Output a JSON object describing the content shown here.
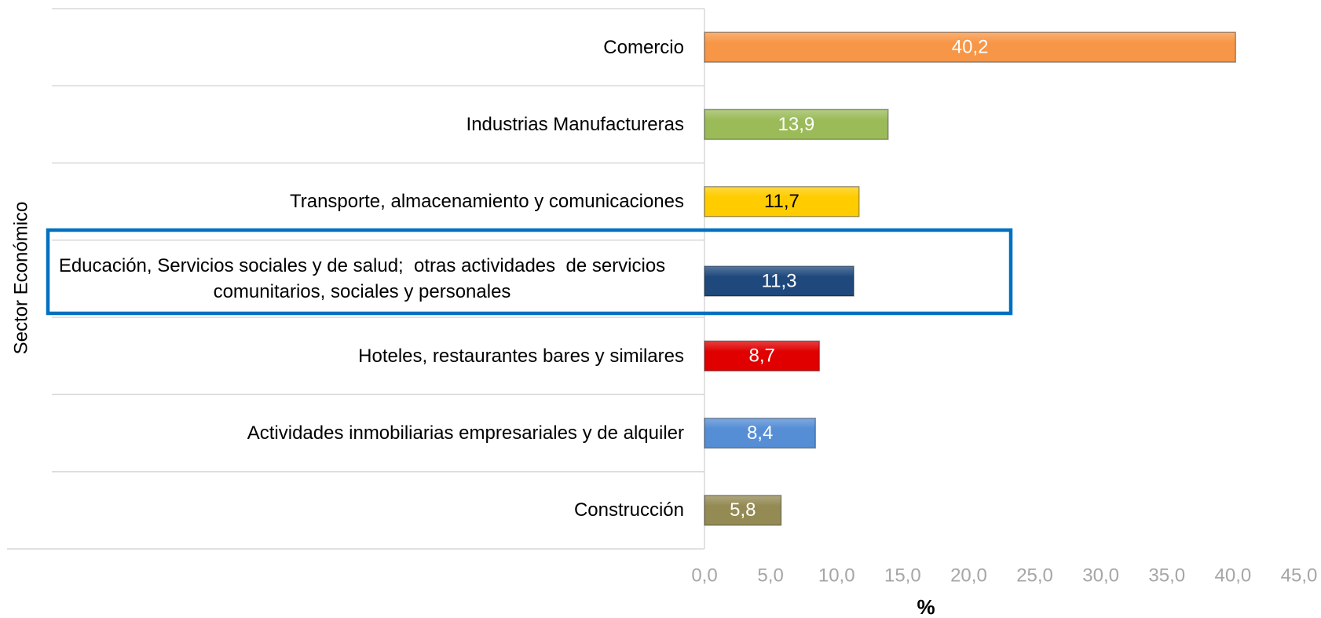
{
  "chart_data": {
    "type": "barh",
    "categories": [
      "Comercio",
      "Industrias Manufactureras",
      "Transporte, almacenamiento y comunicaciones",
      "Educación, Servicios sociales y de salud;  otras actividades  de servicios comunitarios, sociales y personales",
      "Hoteles, restaurantes bares y similares",
      "Actividades inmobiliarias empresariales y de alquiler",
      "Construcción"
    ],
    "values": [
      40.2,
      13.9,
      11.7,
      11.3,
      8.7,
      8.4,
      5.8
    ],
    "value_labels": [
      "40,2",
      "13,9",
      "11,7",
      "11,3",
      "8,7",
      "8,4",
      "5,8"
    ],
    "colors": [
      "#f79646",
      "#9bbb59",
      "#ffcc00",
      "#1f497d",
      "#e00000",
      "#558ed5",
      "#948a54"
    ],
    "value_label_colors": [
      "#ffffff",
      "#ffffff",
      "#000000",
      "#ffffff",
      "#ffffff",
      "#ffffff",
      "#ffffff"
    ],
    "xlabel": "%",
    "ylabel": "Sector Económico",
    "xlim": [
      0,
      45
    ],
    "xticks": [
      {
        "value": 0,
        "label": "0,0"
      },
      {
        "value": 5,
        "label": "5,0"
      },
      {
        "value": 10,
        "label": "10,0"
      },
      {
        "value": 15,
        "label": "15,0"
      },
      {
        "value": 20,
        "label": "20,0"
      },
      {
        "value": 25,
        "label": "25,0"
      },
      {
        "value": 30,
        "label": "30,0"
      },
      {
        "value": 35,
        "label": "35,0"
      },
      {
        "value": 40,
        "label": "40,0"
      },
      {
        "value": 45,
        "label": "45,0"
      }
    ],
    "highlight_color": "#0070c0"
  }
}
